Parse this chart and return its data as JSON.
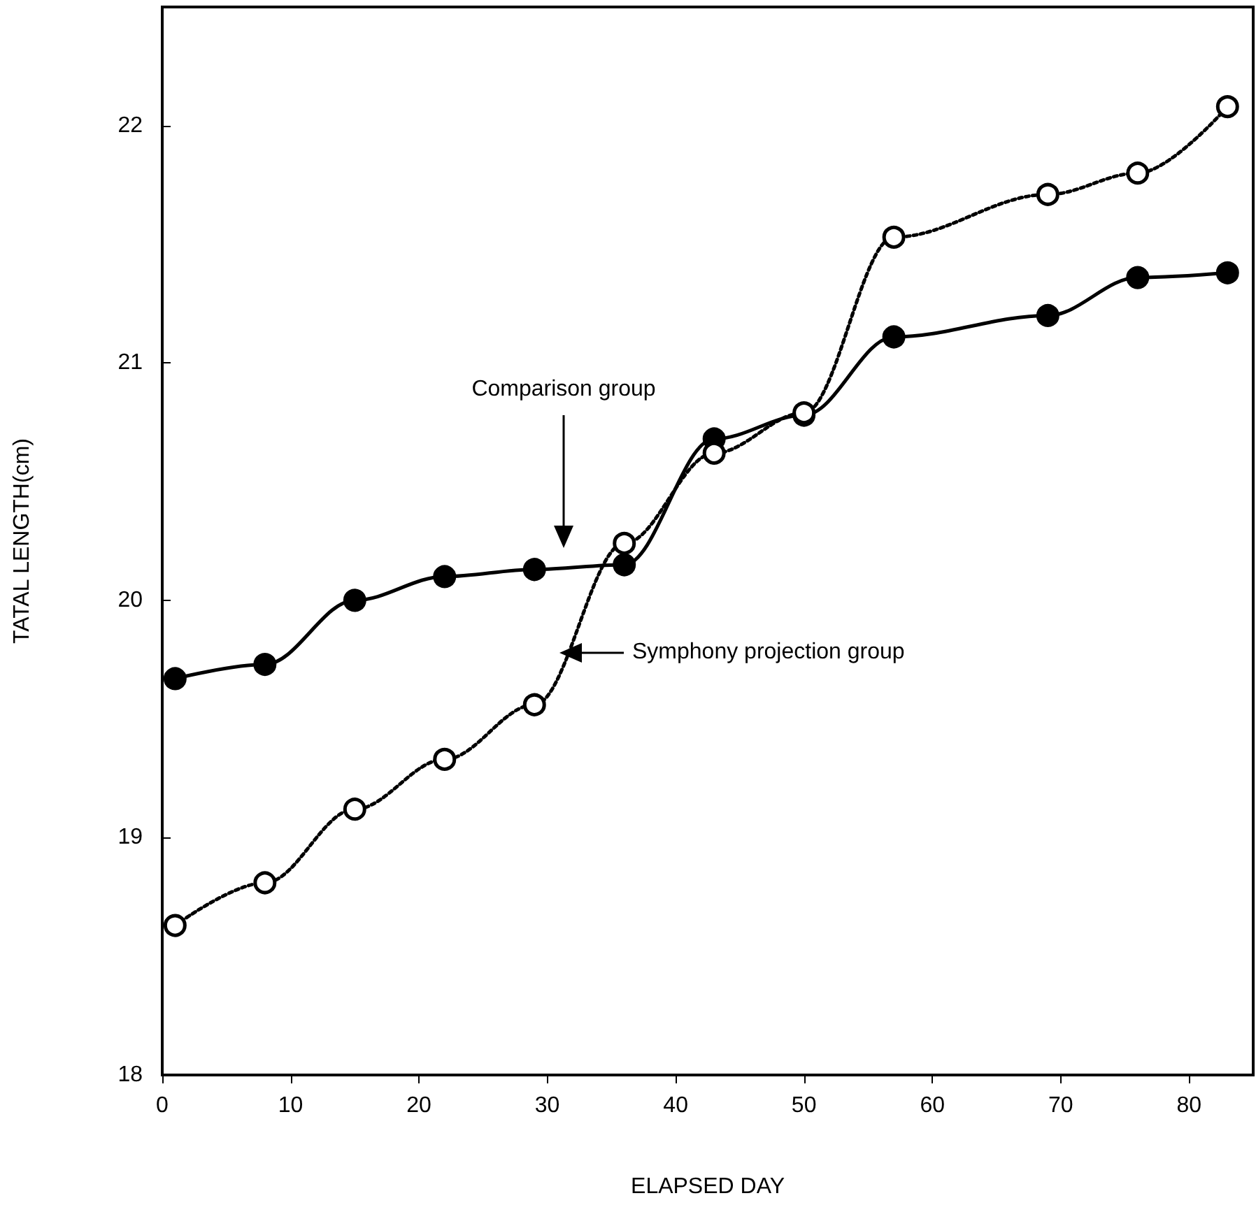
{
  "chart_data": {
    "type": "line",
    "xlabel": "ELAPSED DAY",
    "ylabel": "TATAL LENGTH(cm)",
    "x": [
      1,
      8,
      15,
      22,
      29,
      36,
      43,
      50,
      57,
      69,
      76,
      83
    ],
    "series": [
      {
        "color": "#000000",
        "line_style": "solid",
        "values": [
          19.67,
          19.73,
          20.0,
          20.1,
          20.13,
          20.15,
          20.68,
          20.78,
          21.11,
          21.2,
          21.36,
          21.38
        ]
      },
      {
        "color": "#000000",
        "line_style": "dotted",
        "values": [
          18.63,
          18.81,
          19.12,
          19.33,
          19.56,
          20.24,
          20.62,
          20.79,
          21.53,
          21.71,
          21.8,
          22.08
        ]
      }
    ],
    "xlim": [
      0,
      85
    ],
    "xticks": [
      0,
      10,
      20,
      30,
      40,
      50,
      60,
      70,
      80
    ],
    "ylim": [
      18,
      22.5
    ],
    "yticks": [
      18,
      19,
      20,
      21,
      22
    ],
    "grid": false,
    "marker": "circle",
    "annotations": [
      "Comparison group",
      "Symphony projection group"
    ]
  }
}
